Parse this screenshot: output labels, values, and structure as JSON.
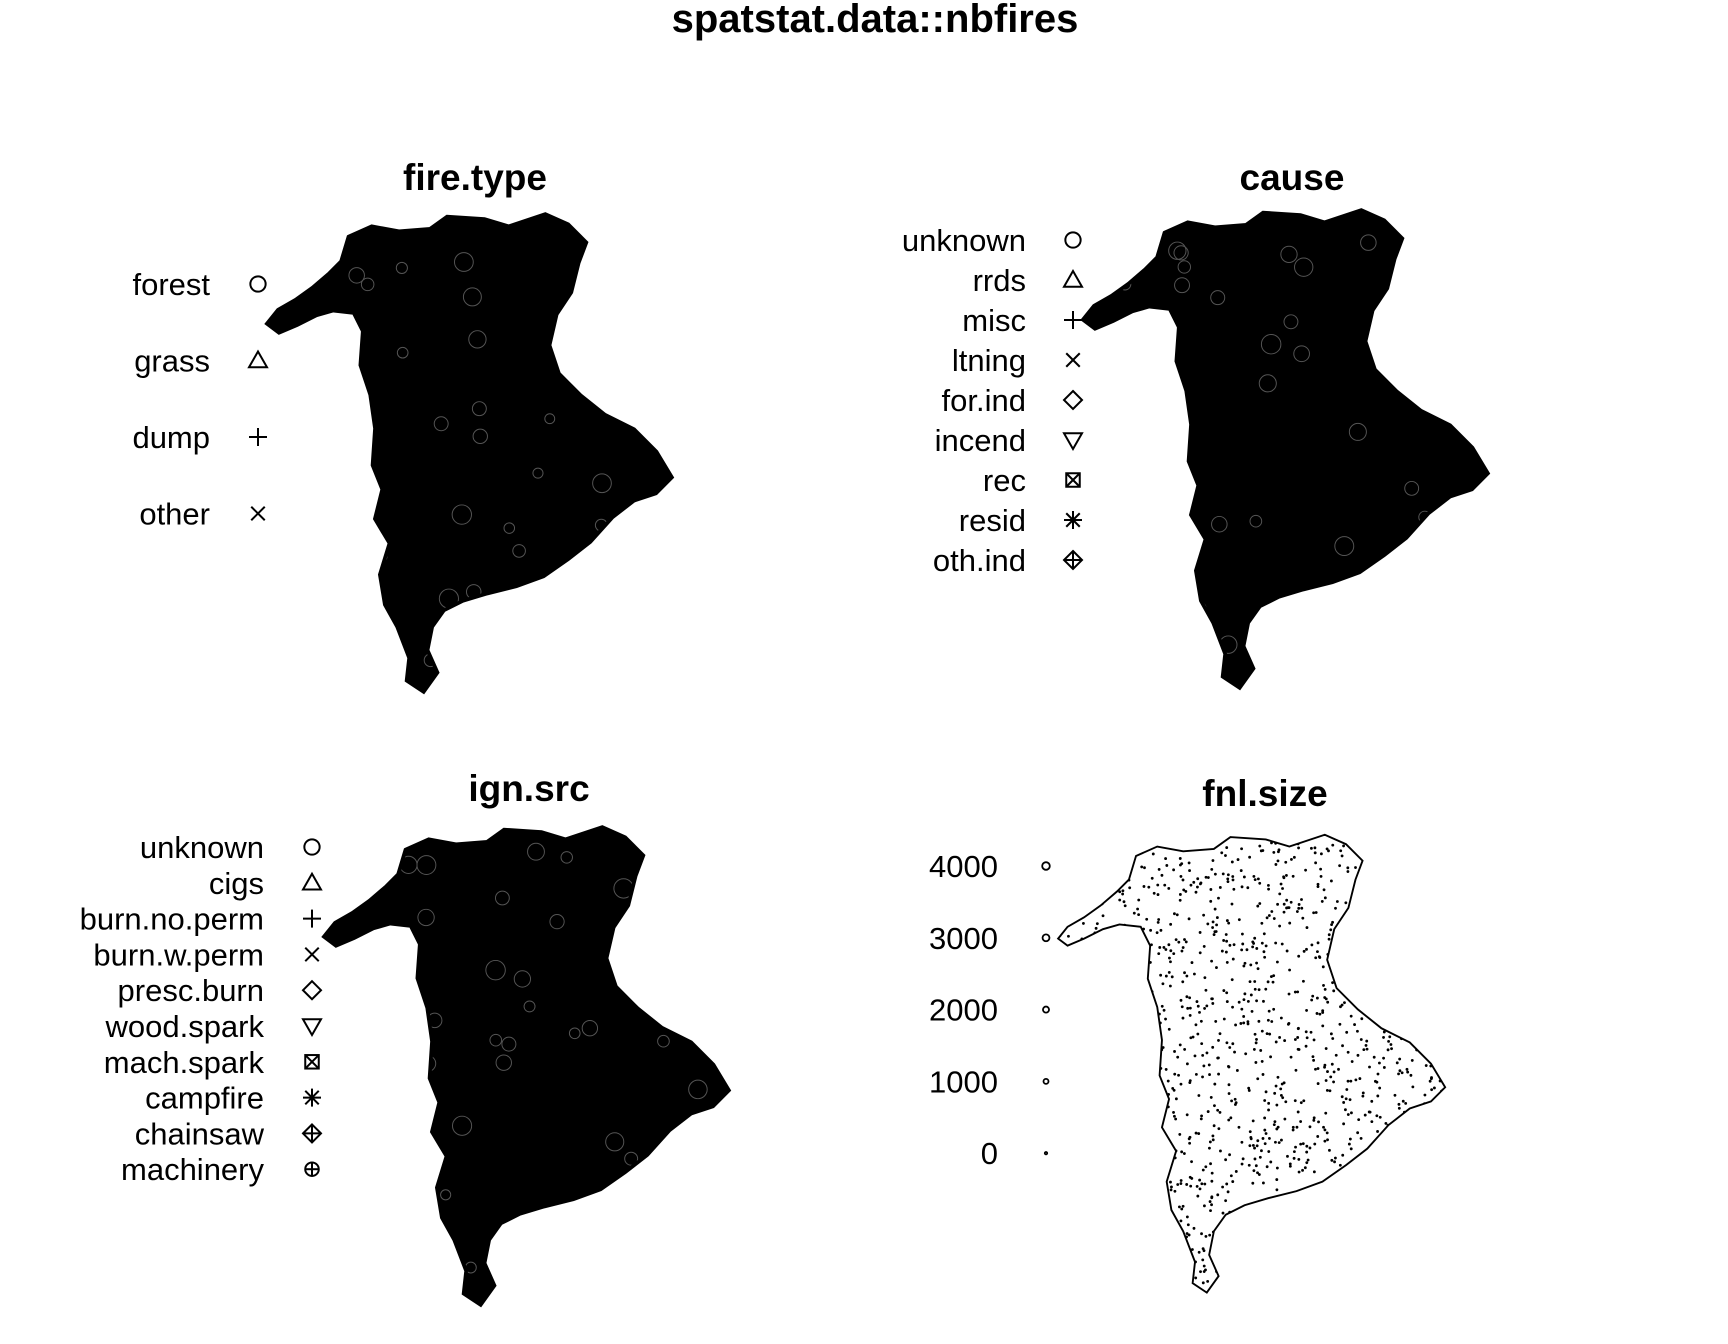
{
  "title": "spatstat.data::nbfires",
  "chart_data": [
    {
      "type": "scatter",
      "title": "fire.type",
      "mark_variable": "fire.type",
      "legend": {
        "placement": "left",
        "entries": [
          {
            "label": "forest",
            "symbol": "circle"
          },
          {
            "label": "grass",
            "symbol": "triangle-up"
          },
          {
            "label": "dump",
            "symbol": "plus"
          },
          {
            "label": "other",
            "symbol": "cross"
          }
        ]
      }
    },
    {
      "type": "scatter",
      "title": "cause",
      "mark_variable": "cause",
      "legend": {
        "placement": "left",
        "entries": [
          {
            "label": "unknown",
            "symbol": "circle"
          },
          {
            "label": "rrds",
            "symbol": "triangle-up"
          },
          {
            "label": "misc",
            "symbol": "plus"
          },
          {
            "label": "ltning",
            "symbol": "cross"
          },
          {
            "label": "for.ind",
            "symbol": "diamond"
          },
          {
            "label": "incend",
            "symbol": "triangle-down"
          },
          {
            "label": "rec",
            "symbol": "square-cross"
          },
          {
            "label": "resid",
            "symbol": "asterisk"
          },
          {
            "label": "oth.ind",
            "symbol": "diamond-plus"
          }
        ]
      }
    },
    {
      "type": "scatter",
      "title": "ign.src",
      "mark_variable": "ign.src",
      "legend": {
        "placement": "left",
        "entries": [
          {
            "label": "unknown",
            "symbol": "circle"
          },
          {
            "label": "cigs",
            "symbol": "triangle-up"
          },
          {
            "label": "burn.no.perm",
            "symbol": "plus"
          },
          {
            "label": "burn.w.perm",
            "symbol": "cross"
          },
          {
            "label": "presc.burn",
            "symbol": "diamond"
          },
          {
            "label": "wood.spark",
            "symbol": "triangle-down"
          },
          {
            "label": "mach.spark",
            "symbol": "square-cross"
          },
          {
            "label": "campfire",
            "symbol": "asterisk"
          },
          {
            "label": "chainsaw",
            "symbol": "diamond-plus"
          },
          {
            "label": "machinery",
            "symbol": "circle-plus"
          }
        ]
      }
    },
    {
      "type": "scatter",
      "title": "fnl.size",
      "mark_variable": "fnl.size",
      "legend": {
        "placement": "left",
        "entries": [
          {
            "label": "4000",
            "value": 4000,
            "symbol": "circle"
          },
          {
            "label": "3000",
            "value": 3000,
            "symbol": "circle"
          },
          {
            "label": "2000",
            "value": 2000,
            "symbol": "circle"
          },
          {
            "label": "1000",
            "value": 1000,
            "symbol": "circle"
          },
          {
            "label": "0",
            "value": 0,
            "symbol": "circle"
          }
        ]
      }
    }
  ]
}
